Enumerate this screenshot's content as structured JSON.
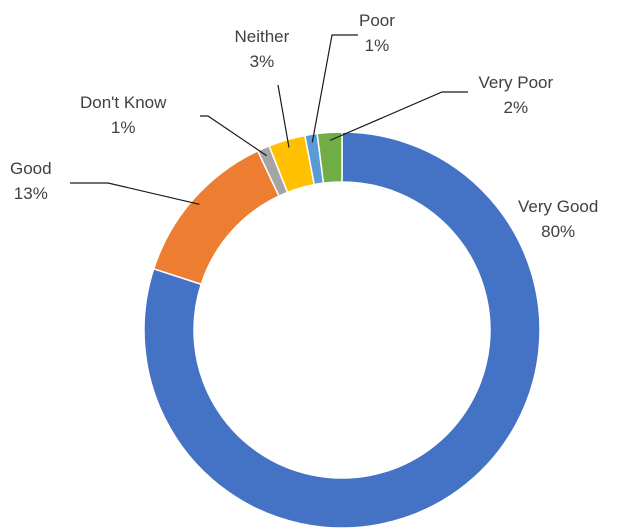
{
  "chart_data": {
    "type": "pie",
    "variant": "donut",
    "title": "",
    "legend": "none",
    "slices": [
      {
        "label": "Very Good",
        "value": 80,
        "display": "80%",
        "color": "#4472C4"
      },
      {
        "label": "Good",
        "value": 13,
        "display": "13%",
        "color": "#ED7D31"
      },
      {
        "label": "Don't Know",
        "value": 1,
        "display": "1%",
        "color": "#A5A5A5"
      },
      {
        "label": "Neither",
        "value": 3,
        "display": "3%",
        "color": "#FFC000"
      },
      {
        "label": "Poor",
        "value": 1,
        "display": "1%",
        "color": "#5B9BD5"
      },
      {
        "label": "Very Poor",
        "value": 2,
        "display": "2%",
        "color": "#70AD47"
      }
    ]
  }
}
